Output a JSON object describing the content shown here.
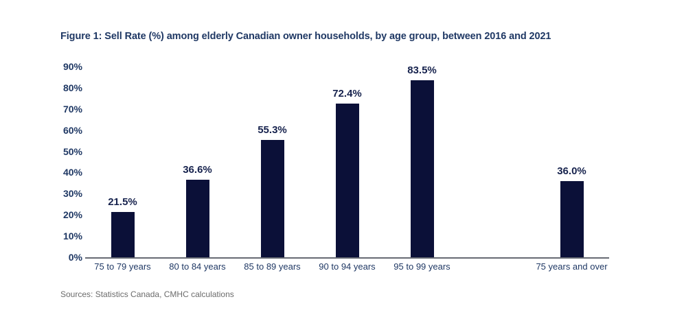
{
  "figure": {
    "title": "Figure 1: Sell Rate (%) among elderly Canadian owner households, by age group, between 2016 and 2021",
    "sources": "Sources: Statistics Canada, CMHC calculations"
  },
  "colors": {
    "background": "#ffffff",
    "bar": "#0b1038",
    "title_text": "#1f3864",
    "axis_text": "#1f3864",
    "data_label_text": "#16224d",
    "axis_line": "#666a73",
    "sources_text": "#6b6b6b"
  },
  "chart_data": {
    "type": "bar",
    "title": "Figure 1: Sell Rate (%) among elderly Canadian owner households, by age group, between 2016 and 2021",
    "categories": [
      "75 to 79 years",
      "80 to 84 years",
      "85 to 89 years",
      "90 to 94 years",
      "95 to 99 years",
      "75 years and over"
    ],
    "values": [
      21.5,
      36.6,
      55.3,
      72.4,
      83.5,
      36.0
    ],
    "data_labels": [
      "21.5%",
      "36.6%",
      "55.3%",
      "72.4%",
      "83.5%",
      "36.0%"
    ],
    "xlabel": "",
    "ylabel": "",
    "y_ticks": [
      "0%",
      "10%",
      "20%",
      "30%",
      "40%",
      "50%",
      "60%",
      "70%",
      "80%",
      "90%"
    ],
    "ylim": [
      0,
      90
    ],
    "grid": false,
    "legend": "none",
    "layout": {
      "slot_count": 7,
      "category_slots": [
        0,
        1,
        2,
        3,
        4,
        6
      ],
      "note": "one empty slot separates the five 5-year age groups from the 75-years-and-over total"
    }
  }
}
